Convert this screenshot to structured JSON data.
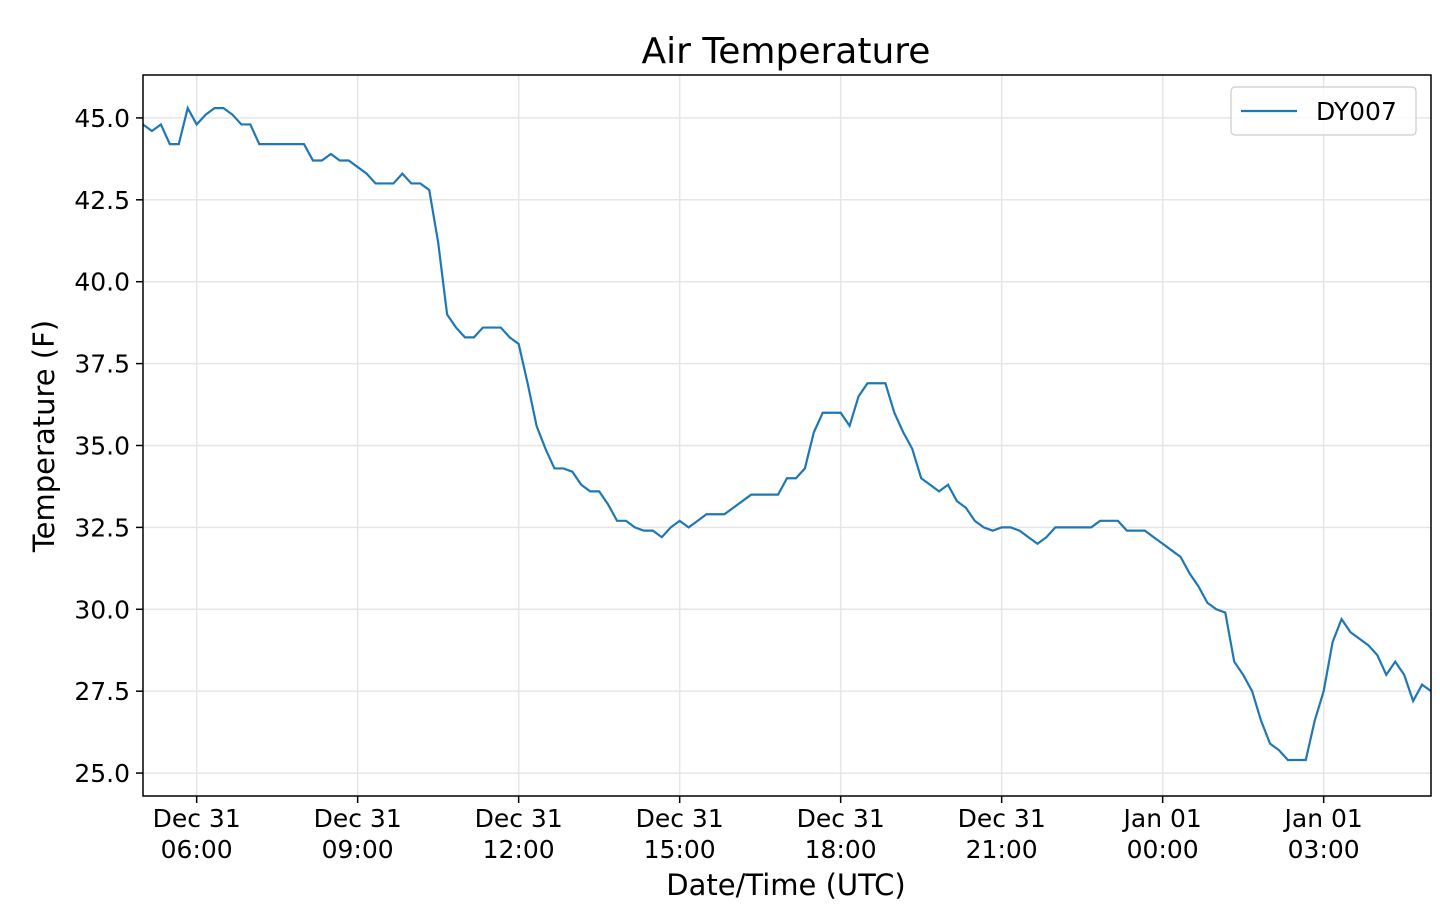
{
  "chart_data": {
    "type": "line",
    "title": "Air Temperature",
    "x_label": "Date/Time (UTC)",
    "y_label": "Temperature (F)",
    "x": [
      "Dec 31 05:00",
      "Dec 31 05:10",
      "Dec 31 05:20",
      "Dec 31 05:30",
      "Dec 31 05:40",
      "Dec 31 05:50",
      "Dec 31 06:00",
      "Dec 31 06:10",
      "Dec 31 06:20",
      "Dec 31 06:30",
      "Dec 31 06:40",
      "Dec 31 06:50",
      "Dec 31 07:00",
      "Dec 31 07:10",
      "Dec 31 07:20",
      "Dec 31 07:30",
      "Dec 31 07:40",
      "Dec 31 07:50",
      "Dec 31 08:00",
      "Dec 31 08:10",
      "Dec 31 08:20",
      "Dec 31 08:30",
      "Dec 31 08:40",
      "Dec 31 08:50",
      "Dec 31 09:00",
      "Dec 31 09:10",
      "Dec 31 09:20",
      "Dec 31 09:30",
      "Dec 31 09:40",
      "Dec 31 09:50",
      "Dec 31 10:00",
      "Dec 31 10:10",
      "Dec 31 10:20",
      "Dec 31 10:30",
      "Dec 31 10:40",
      "Dec 31 10:50",
      "Dec 31 11:00",
      "Dec 31 11:10",
      "Dec 31 11:20",
      "Dec 31 11:30",
      "Dec 31 11:40",
      "Dec 31 11:50",
      "Dec 31 12:00",
      "Dec 31 12:10",
      "Dec 31 12:20",
      "Dec 31 12:30",
      "Dec 31 12:40",
      "Dec 31 12:50",
      "Dec 31 13:00",
      "Dec 31 13:10",
      "Dec 31 13:20",
      "Dec 31 13:30",
      "Dec 31 13:40",
      "Dec 31 13:50",
      "Dec 31 14:00",
      "Dec 31 14:10",
      "Dec 31 14:20",
      "Dec 31 14:30",
      "Dec 31 14:40",
      "Dec 31 14:50",
      "Dec 31 15:00",
      "Dec 31 15:10",
      "Dec 31 15:20",
      "Dec 31 15:30",
      "Dec 31 15:40",
      "Dec 31 15:50",
      "Dec 31 16:00",
      "Dec 31 16:10",
      "Dec 31 16:20",
      "Dec 31 16:30",
      "Dec 31 16:40",
      "Dec 31 16:50",
      "Dec 31 17:00",
      "Dec 31 17:10",
      "Dec 31 17:20",
      "Dec 31 17:30",
      "Dec 31 17:40",
      "Dec 31 17:50",
      "Dec 31 18:00",
      "Dec 31 18:10",
      "Dec 31 18:20",
      "Dec 31 18:30",
      "Dec 31 18:40",
      "Dec 31 18:50",
      "Dec 31 19:00",
      "Dec 31 19:10",
      "Dec 31 19:20",
      "Dec 31 19:30",
      "Dec 31 19:40",
      "Dec 31 19:50",
      "Dec 31 20:00",
      "Dec 31 20:10",
      "Dec 31 20:20",
      "Dec 31 20:30",
      "Dec 31 20:40",
      "Dec 31 20:50",
      "Dec 31 21:00",
      "Dec 31 21:10",
      "Dec 31 21:20",
      "Dec 31 21:30",
      "Dec 31 21:40",
      "Dec 31 21:50",
      "Dec 31 22:00",
      "Dec 31 22:10",
      "Dec 31 22:20",
      "Dec 31 22:30",
      "Dec 31 22:40",
      "Dec 31 22:50",
      "Dec 31 23:00",
      "Dec 31 23:10",
      "Dec 31 23:20",
      "Dec 31 23:30",
      "Dec 31 23:40",
      "Dec 31 23:50",
      "Jan 01 00:00",
      "Jan 01 00:10",
      "Jan 01 00:20",
      "Jan 01 00:30",
      "Jan 01 00:40",
      "Jan 01 00:50",
      "Jan 01 01:00",
      "Jan 01 01:10",
      "Jan 01 01:20",
      "Jan 01 01:30",
      "Jan 01 01:40",
      "Jan 01 01:50",
      "Jan 01 02:00",
      "Jan 01 02:10",
      "Jan 01 02:20",
      "Jan 01 02:30",
      "Jan 01 02:40",
      "Jan 01 02:50",
      "Jan 01 03:00",
      "Jan 01 03:10",
      "Jan 01 03:20",
      "Jan 01 03:30",
      "Jan 01 03:40",
      "Jan 01 03:50",
      "Jan 01 04:00",
      "Jan 01 04:10",
      "Jan 01 04:20",
      "Jan 01 04:30",
      "Jan 01 04:40",
      "Jan 01 04:50",
      "Jan 01 05:00"
    ],
    "series": [
      {
        "name": "DY007",
        "color": "#1f77b4",
        "values": [
          44.8,
          44.6,
          44.8,
          44.2,
          44.2,
          45.3,
          44.8,
          45.1,
          45.3,
          45.3,
          45.1,
          44.8,
          44.8,
          44.2,
          44.2,
          44.2,
          44.2,
          44.2,
          44.2,
          43.7,
          43.7,
          43.9,
          43.7,
          43.7,
          43.5,
          43.3,
          43.0,
          43.0,
          43.0,
          43.3,
          43.0,
          43.0,
          42.8,
          41.2,
          39.0,
          38.6,
          38.3,
          38.3,
          38.6,
          38.6,
          38.6,
          38.3,
          38.1,
          36.9,
          35.6,
          34.9,
          34.3,
          34.3,
          34.2,
          33.8,
          33.6,
          33.6,
          33.2,
          32.7,
          32.7,
          32.5,
          32.4,
          32.4,
          32.2,
          32.5,
          32.7,
          32.5,
          32.7,
          32.9,
          32.9,
          32.9,
          33.1,
          33.3,
          33.5,
          33.5,
          33.5,
          33.5,
          34.0,
          34.0,
          34.3,
          35.4,
          36.0,
          36.0,
          36.0,
          35.6,
          36.5,
          36.9,
          36.9,
          36.9,
          36.0,
          35.4,
          34.9,
          34.0,
          33.8,
          33.6,
          33.8,
          33.3,
          33.1,
          32.7,
          32.5,
          32.4,
          32.5,
          32.5,
          32.4,
          32.2,
          32.0,
          32.2,
          32.5,
          32.5,
          32.5,
          32.5,
          32.5,
          32.7,
          32.7,
          32.7,
          32.4,
          32.4,
          32.4,
          32.2,
          32.0,
          31.8,
          31.6,
          31.1,
          30.7,
          30.2,
          30.0,
          29.9,
          28.4,
          28.0,
          27.5,
          26.6,
          25.9,
          25.7,
          25.4,
          25.4,
          25.4,
          26.6,
          27.5,
          29.0,
          29.7,
          29.3,
          29.1,
          28.9,
          28.6,
          28.0,
          28.4,
          28.0,
          27.2,
          27.7,
          27.5
        ]
      }
    ],
    "xlim": [
      "Dec 31 05:00",
      "Jan 01 05:00"
    ],
    "xticks": [
      {
        "value": "Dec 31 06:00",
        "label": [
          "Dec 31",
          "06:00"
        ]
      },
      {
        "value": "Dec 31 09:00",
        "label": [
          "Dec 31",
          "09:00"
        ]
      },
      {
        "value": "Dec 31 12:00",
        "label": [
          "Dec 31",
          "12:00"
        ]
      },
      {
        "value": "Dec 31 15:00",
        "label": [
          "Dec 31",
          "15:00"
        ]
      },
      {
        "value": "Dec 31 18:00",
        "label": [
          "Dec 31",
          "18:00"
        ]
      },
      {
        "value": "Dec 31 21:00",
        "label": [
          "Dec 31",
          "21:00"
        ]
      },
      {
        "value": "Jan 01 00:00",
        "label": [
          "Jan 01",
          "00:00"
        ]
      },
      {
        "value": "Jan 01 03:00",
        "label": [
          "Jan 01",
          "03:00"
        ]
      }
    ],
    "ylim": [
      24.3,
      46.31
    ],
    "yticks": [
      {
        "value": 25,
        "label": "25.0"
      },
      {
        "value": 27.5,
        "label": "27.5"
      },
      {
        "value": 30,
        "label": "30.0"
      },
      {
        "value": 32.5,
        "label": "32.5"
      },
      {
        "value": 35,
        "label": "35.0"
      },
      {
        "value": 37.5,
        "label": "37.5"
      },
      {
        "value": 40,
        "label": "40.0"
      },
      {
        "value": 42.5,
        "label": "42.5"
      },
      {
        "value": 45,
        "label": "45.0"
      }
    ],
    "grid": true,
    "legend_position": "upper right"
  }
}
